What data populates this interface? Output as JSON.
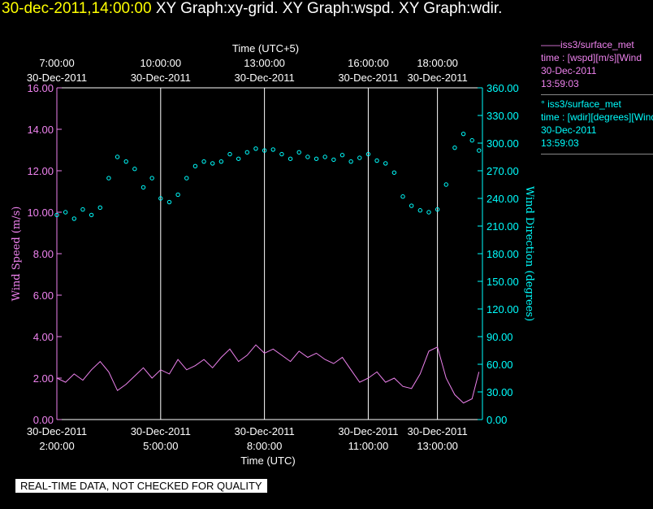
{
  "title": {
    "timestamp": "30-dec-2011,14:00:00",
    "text": "XY Graph:xy-grid.  XY Graph:wspd.  XY Graph:wdir."
  },
  "legend": {
    "wspd": {
      "line": "——iss3/surface_met",
      "var": "time : [wspd][m/s][Wind",
      "date": "30-Dec-2011",
      "time": "13:59:03"
    },
    "wdir": {
      "line": "°  iss3/surface_met",
      "var": "time : [wdir][degrees][Wind",
      "date": "30-Dec-2011",
      "time": "13:59:03"
    }
  },
  "disclaimer": "REAL-TIME DATA, NOT CHECKED FOR QUALITY",
  "colors": {
    "wspd": "#ee82ee",
    "wdir": "#00ffff",
    "grid": "#ffffff",
    "background": "#000000"
  },
  "chart_data": {
    "type": "line",
    "top_axis_title": "Time (UTC+5)",
    "bottom_axis_title": "Time (UTC)",
    "ylabel_left": "Wind Speed (m/s)",
    "ylabel_right": "Wind Direction (degrees)",
    "xlim_hours_utc": [
      2.0,
      14.3
    ],
    "ylim_left": [
      0,
      16
    ],
    "ylim_right": [
      0,
      360
    ],
    "x_ticks_top": [
      {
        "at": 2.0,
        "line1": "7:00:00",
        "line2": "30-Dec-2011"
      },
      {
        "at": 5.0,
        "line1": "10:00:00",
        "line2": "30-Dec-2011"
      },
      {
        "at": 8.0,
        "line1": "13:00:00",
        "line2": "30-Dec-2011"
      },
      {
        "at": 11.0,
        "line1": "16:00:00",
        "line2": "30-Dec-2011"
      },
      {
        "at": 13.0,
        "line1": "18:00:00",
        "line2": "30-Dec-2011"
      }
    ],
    "x_ticks_bottom": [
      {
        "at": 2.0,
        "line1": "30-Dec-2011",
        "line2": "2:00:00"
      },
      {
        "at": 5.0,
        "line1": "30-Dec-2011",
        "line2": "5:00:00"
      },
      {
        "at": 8.0,
        "line1": "30-Dec-2011",
        "line2": "8:00:00"
      },
      {
        "at": 11.0,
        "line1": "30-Dec-2011",
        "line2": "11:00:00"
      },
      {
        "at": 13.0,
        "line1": "30-Dec-2011",
        "line2": "13:00:00"
      }
    ],
    "y_ticks_left": [
      "0.00",
      "2.00",
      "4.00",
      "6.00",
      "8.00",
      "10.00",
      "12.00",
      "14.00",
      "16.00"
    ],
    "y_ticks_right": [
      "0.00",
      "30.00",
      "60.00",
      "90.00",
      "120.00",
      "150.00",
      "180.00",
      "210.00",
      "240.00",
      "270.00",
      "300.00",
      "330.00",
      "360.00"
    ],
    "series": [
      {
        "name": "iss3/surface_met wspd",
        "style": "line",
        "x": [
          2.0,
          2.25,
          2.5,
          2.75,
          3.0,
          3.25,
          3.5,
          3.75,
          4.0,
          4.25,
          4.5,
          4.75,
          5.0,
          5.25,
          5.5,
          5.75,
          6.0,
          6.25,
          6.5,
          6.75,
          7.0,
          7.25,
          7.5,
          7.75,
          8.0,
          8.25,
          8.5,
          8.75,
          9.0,
          9.25,
          9.5,
          9.75,
          10.0,
          10.25,
          10.5,
          10.75,
          11.0,
          11.25,
          11.5,
          11.75,
          12.0,
          12.25,
          12.5,
          12.75,
          13.0,
          13.25,
          13.5,
          13.75,
          14.0,
          14.2
        ],
        "y": [
          2.0,
          1.8,
          2.2,
          1.9,
          2.4,
          2.8,
          2.3,
          1.4,
          1.7,
          2.1,
          2.5,
          2.0,
          2.4,
          2.2,
          2.9,
          2.4,
          2.6,
          2.9,
          2.5,
          3.0,
          3.4,
          2.8,
          3.1,
          3.6,
          3.2,
          3.4,
          3.1,
          2.8,
          3.3,
          3.0,
          3.2,
          2.9,
          2.7,
          3.0,
          2.4,
          1.8,
          2.0,
          2.3,
          1.8,
          2.0,
          1.6,
          1.5,
          2.2,
          3.3,
          3.5,
          2.0,
          1.2,
          0.8,
          1.0,
          2.3
        ]
      },
      {
        "name": "iss3/surface_met wdir",
        "style": "scatter",
        "x": [
          2.0,
          2.25,
          2.5,
          2.75,
          3.0,
          3.25,
          3.5,
          3.75,
          4.0,
          4.25,
          4.5,
          4.75,
          5.0,
          5.25,
          5.5,
          5.75,
          6.0,
          6.25,
          6.5,
          6.75,
          7.0,
          7.25,
          7.5,
          7.75,
          8.0,
          8.25,
          8.5,
          8.75,
          9.0,
          9.25,
          9.5,
          9.75,
          10.0,
          10.25,
          10.5,
          10.75,
          11.0,
          11.25,
          11.5,
          11.75,
          12.0,
          12.25,
          12.5,
          12.75,
          13.0,
          13.25,
          13.5,
          13.75,
          14.0,
          14.2
        ],
        "y": [
          222,
          225,
          218,
          228,
          222,
          230,
          262,
          285,
          280,
          272,
          252,
          262,
          240,
          236,
          244,
          262,
          275,
          280,
          278,
          280,
          288,
          283,
          290,
          294,
          292,
          293,
          288,
          283,
          290,
          285,
          283,
          285,
          282,
          287,
          280,
          284,
          288,
          281,
          278,
          268,
          242,
          232,
          227,
          225,
          228,
          255,
          295,
          310,
          303,
          292
        ]
      }
    ]
  }
}
